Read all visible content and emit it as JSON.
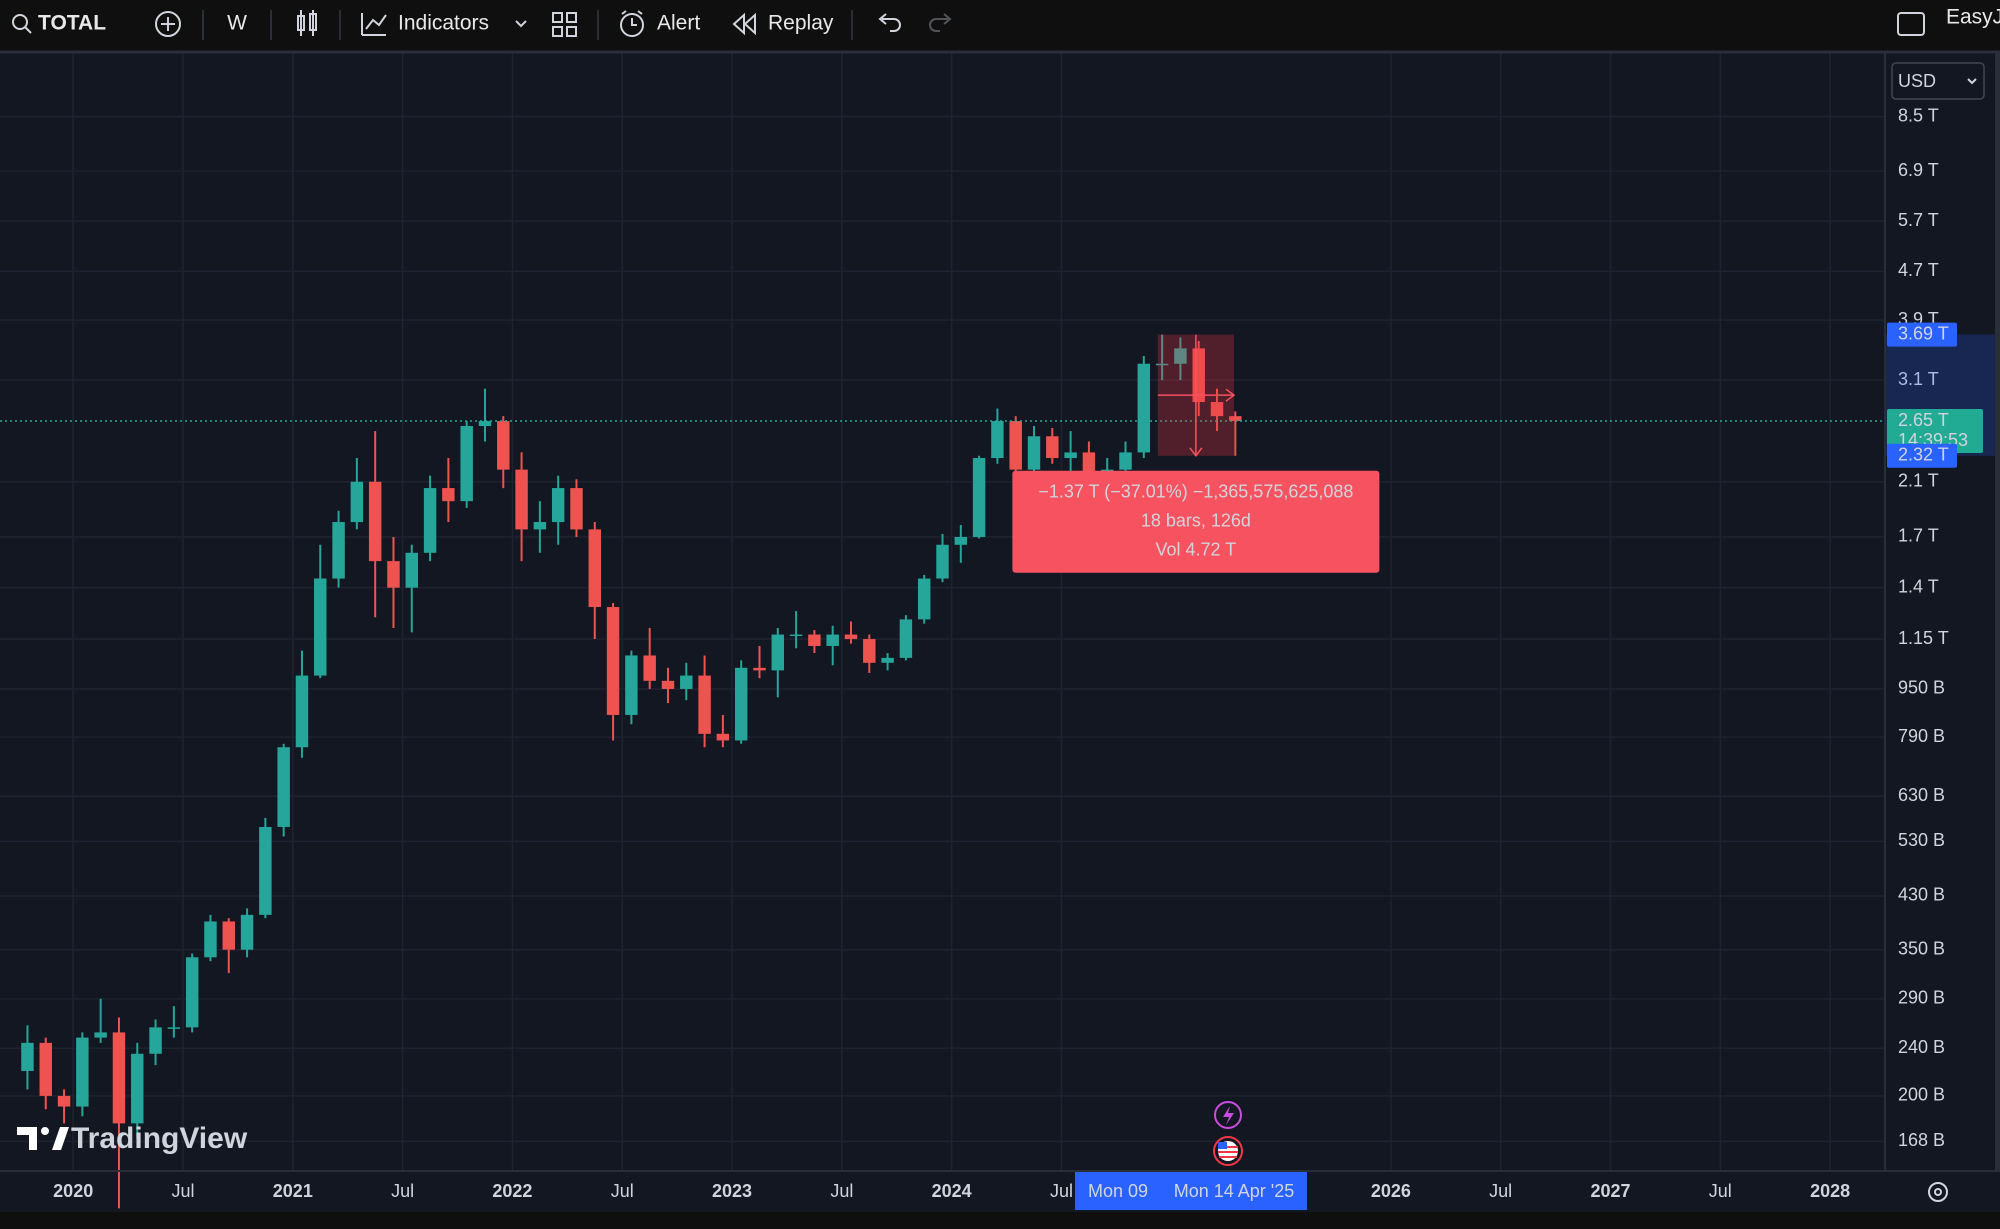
{
  "toolbar": {
    "symbol": "TOTAL",
    "interval": "W",
    "indicators": "Indicators",
    "alert": "Alert",
    "replay": "Replay",
    "user": "EasyJ"
  },
  "currency": "USD",
  "logo": "TradingView",
  "chart_data": {
    "type": "candlestick",
    "log_scale": true,
    "grid": true,
    "up_color": "#26a69a",
    "down_color": "#ef5350",
    "xlim": [
      "2019-09",
      "2028-04"
    ],
    "ylim": [
      150,
      10600
    ],
    "xticks": [
      {
        "value": "2020-01",
        "label": "2020"
      },
      {
        "value": "2020-07",
        "label": "Jul"
      },
      {
        "value": "2021-01",
        "label": "2021"
      },
      {
        "value": "2021-07",
        "label": "Jul"
      },
      {
        "value": "2022-01",
        "label": "2022"
      },
      {
        "value": "2022-07",
        "label": "Jul"
      },
      {
        "value": "2023-01",
        "label": "2023"
      },
      {
        "value": "2023-07",
        "label": "Jul"
      },
      {
        "value": "2024-01",
        "label": "2024"
      },
      {
        "value": "2024-07",
        "label": "Jul"
      },
      {
        "value": "2026-01",
        "label": "2026"
      },
      {
        "value": "2026-07",
        "label": "Jul"
      },
      {
        "value": "2027-01",
        "label": "2027"
      },
      {
        "value": "2027-07",
        "label": "Jul"
      },
      {
        "value": "2028-01",
        "label": "2028"
      }
    ],
    "yticks": [
      {
        "value": 8500,
        "label": "8.5 T"
      },
      {
        "value": 6900,
        "label": "6.9 T"
      },
      {
        "value": 5700,
        "label": "5.7 T"
      },
      {
        "value": 4700,
        "label": "4.7 T"
      },
      {
        "value": 3900,
        "label": "3.9 T"
      },
      {
        "value": 3100,
        "label": "3.1 T"
      },
      {
        "value": 2100,
        "label": "2.1 T"
      },
      {
        "value": 1700,
        "label": "1.7 T"
      },
      {
        "value": 1400,
        "label": "1.4 T"
      },
      {
        "value": 1150,
        "label": "1.15 T"
      },
      {
        "value": 950,
        "label": "950 B"
      },
      {
        "value": 790,
        "label": "790 B"
      },
      {
        "value": 630,
        "label": "630 B"
      },
      {
        "value": 530,
        "label": "530 B"
      },
      {
        "value": 430,
        "label": "430 B"
      },
      {
        "value": 350,
        "label": "350 B"
      },
      {
        "value": 290,
        "label": "290 B"
      },
      {
        "value": 240,
        "label": "240 B"
      },
      {
        "value": 200,
        "label": "200 B"
      },
      {
        "value": 168,
        "label": "168 B"
      }
    ],
    "x": [
      "2019-10",
      "2019-11",
      "2019-12",
      "2020-01",
      "2020-02",
      "2020-03",
      "2020-04",
      "2020-05",
      "2020-06",
      "2020-07",
      "2020-08",
      "2020-09",
      "2020-10",
      "2020-11",
      "2020-12",
      "2021-01",
      "2021-02",
      "2021-03",
      "2021-04",
      "2021-05",
      "2021-06",
      "2021-07",
      "2021-08",
      "2021-09",
      "2021-10",
      "2021-11",
      "2021-12",
      "2022-01",
      "2022-02",
      "2022-03",
      "2022-04",
      "2022-05",
      "2022-06",
      "2022-07",
      "2022-08",
      "2022-09",
      "2022-10",
      "2022-11",
      "2022-12",
      "2023-01",
      "2023-02",
      "2023-03",
      "2023-04",
      "2023-05",
      "2023-06",
      "2023-07",
      "2023-08",
      "2023-09",
      "2023-10",
      "2023-11",
      "2023-12",
      "2024-01",
      "2024-02",
      "2024-03",
      "2024-04",
      "2024-05",
      "2024-06",
      "2024-07",
      "2024-08",
      "2024-09",
      "2024-10",
      "2024-11",
      "2024-12",
      "2025-01",
      "2025-02",
      "2025-03",
      "2025-04"
    ],
    "open": [
      220,
      245,
      200,
      192,
      250,
      255,
      180,
      235,
      260,
      260,
      340,
      390,
      350,
      400,
      560,
      760,
      1000,
      1450,
      1800,
      2100,
      1550,
      1400,
      1600,
      2050,
      1950,
      2600,
      2650,
      2200,
      1750,
      1800,
      2050,
      1750,
      1300,
      860,
      1080,
      980,
      950,
      1000,
      800,
      780,
      1030,
      1020,
      1170,
      1170,
      1120,
      1170,
      1150,
      1050,
      1070,
      1240,
      1450,
      1650,
      1700,
      2300,
      2650,
      2200,
      2500,
      2300,
      2350,
      2100,
      2200,
      2350,
      3300,
      3300,
      3500,
      2850,
      2700
    ],
    "high": [
      262,
      250,
      205,
      255,
      290,
      270,
      245,
      268,
      282,
      345,
      400,
      395,
      410,
      580,
      770,
      1100,
      1650,
      1880,
      2300,
      2550,
      1700,
      1650,
      2150,
      2300,
      2650,
      3000,
      2700,
      2350,
      1950,
      2150,
      2120,
      1800,
      1320,
      1100,
      1200,
      1030,
      1050,
      1080,
      860,
      1060,
      1120,
      1200,
      1280,
      1190,
      1210,
      1230,
      1170,
      1090,
      1260,
      1470,
      1720,
      1780,
      2320,
      2780,
      2700,
      2600,
      2580,
      2550,
      2450,
      2300,
      2450,
      3400,
      3690,
      3650,
      3600,
      3000,
      2750
    ],
    "low": [
      205,
      190,
      180,
      185,
      245,
      130,
      170,
      225,
      250,
      255,
      335,
      320,
      340,
      395,
      540,
      730,
      990,
      1400,
      1750,
      1250,
      1200,
      1180,
      1550,
      1800,
      1900,
      2450,
      2050,
      1550,
      1600,
      1650,
      1700,
      1150,
      780,
      830,
      950,
      900,
      910,
      760,
      760,
      770,
      990,
      920,
      1110,
      1090,
      1040,
      1130,
      1010,
      1020,
      1060,
      1220,
      1430,
      1540,
      1690,
      2250,
      2150,
      2100,
      2250,
      2150,
      1900,
      1950,
      2150,
      2300,
      3100,
      3100,
      2700,
      2550,
      2320
    ],
    "close": [
      245,
      200,
      192,
      250,
      255,
      180,
      235,
      260,
      260,
      340,
      390,
      350,
      400,
      560,
      760,
      1000,
      1450,
      1800,
      2100,
      1550,
      1400,
      1600,
      2050,
      1950,
      2600,
      2650,
      2200,
      1750,
      1800,
      2050,
      1750,
      1300,
      860,
      1080,
      980,
      950,
      1000,
      800,
      780,
      1030,
      1020,
      1170,
      1170,
      1120,
      1170,
      1150,
      1050,
      1070,
      1240,
      1450,
      1650,
      1700,
      2300,
      2650,
      2200,
      2500,
      2300,
      2350,
      2100,
      2200,
      2350,
      3300,
      3300,
      3500,
      2850,
      2700,
      2650
    ],
    "current_price": {
      "value": 2650,
      "label": "2.65 T",
      "timer": "14:39:53",
      "color": "#22ab94"
    },
    "price_labels": [
      {
        "value": 3690,
        "label": "3.69 T",
        "color": "#2962ff"
      },
      {
        "value": 2320,
        "label": "2.32 T",
        "color": "#2962ff"
      }
    ],
    "measure": {
      "from": "2024-12-09",
      "to": "2025-04-14",
      "high": 3690,
      "low": 2320,
      "lines": [
        "−1.37 T (−37.01%) −1,365,575,625,088",
        "18 bars, 126d",
        "Vol 4.72 T"
      ],
      "from_label": "Mon 09",
      "to_label": "Mon 14 Apr '25"
    }
  }
}
